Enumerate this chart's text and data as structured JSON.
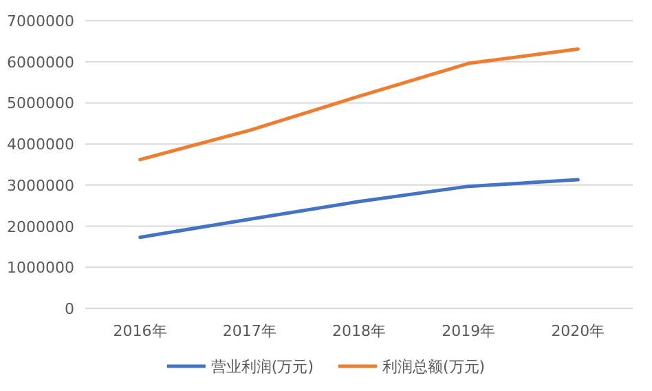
{
  "chart_data": {
    "type": "line",
    "categories": [
      "2016年",
      "2017年",
      "2018年",
      "2019年",
      "2020年"
    ],
    "series": [
      {
        "name": "营业利润(万元)",
        "color": "#4472c4",
        "values": [
          1730000,
          2170000,
          2600000,
          2970000,
          3130000
        ]
      },
      {
        "name": "利润总额(万元)",
        "color": "#ed7d31",
        "values": [
          3620000,
          4330000,
          5160000,
          5960000,
          6310000
        ]
      }
    ],
    "ylim": [
      0,
      7000000
    ],
    "yticks": [
      0,
      1000000,
      2000000,
      3000000,
      4000000,
      5000000,
      6000000,
      7000000
    ],
    "grid": "y",
    "legend": "bottom",
    "marker": "none",
    "line_style": "solid"
  }
}
